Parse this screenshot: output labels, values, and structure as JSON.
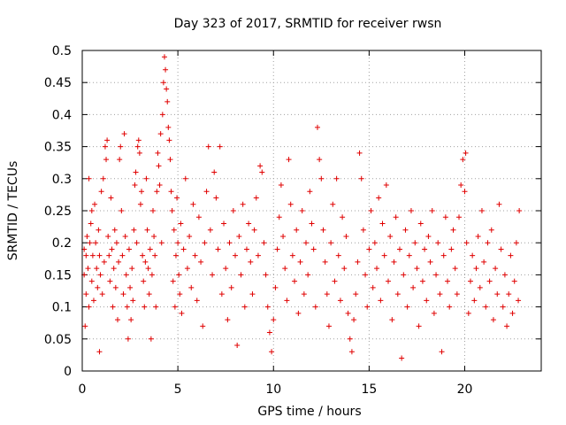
{
  "chart_data": {
    "type": "scatter",
    "title": "Day 323 of 2017, SRMTID for receiver rwsn",
    "xlabel": "GPS time / hours",
    "ylabel": "SRMTID / TECUs",
    "xlim": [
      0,
      24
    ],
    "ylim": [
      0,
      0.5
    ],
    "xticks": [
      0,
      5,
      10,
      15,
      20
    ],
    "xtick_labels": [
      "0",
      "5",
      "10",
      "15",
      "20"
    ],
    "yticks": [
      0,
      0.05,
      0.1,
      0.15,
      0.2,
      0.25,
      0.3,
      0.35,
      0.4,
      0.45,
      0.5
    ],
    "ytick_labels": [
      "0",
      "0.05",
      "0.1",
      "0.15",
      "0.2",
      "0.25",
      "0.3",
      "0.35",
      "0.4",
      "0.45",
      "0.5"
    ],
    "grid": true,
    "marker": "+",
    "color": "#e00000",
    "series": [
      {
        "name": "SRMTID",
        "points": [
          [
            0.1,
            0.15
          ],
          [
            0.1,
            0.19
          ],
          [
            0.15,
            0.07
          ],
          [
            0.2,
            0.18
          ],
          [
            0.2,
            0.12
          ],
          [
            0.25,
            0.21
          ],
          [
            0.3,
            0.16
          ],
          [
            0.35,
            0.1
          ],
          [
            0.35,
            0.3
          ],
          [
            0.4,
            0.2
          ],
          [
            0.45,
            0.23
          ],
          [
            0.5,
            0.14
          ],
          [
            0.5,
            0.25
          ],
          [
            0.55,
            0.18
          ],
          [
            0.6,
            0.11
          ],
          [
            0.65,
            0.26
          ],
          [
            0.7,
            0.2
          ],
          [
            0.75,
            0.16
          ],
          [
            0.8,
            0.13
          ],
          [
            0.85,
            0.22
          ],
          [
            0.9,
            0.18
          ],
          [
            0.9,
            0.03
          ],
          [
            0.95,
            0.15
          ],
          [
            1.0,
            0.28
          ],
          [
            1.05,
            0.12
          ],
          [
            1.1,
            0.3
          ],
          [
            1.15,
            0.17
          ],
          [
            1.2,
            0.35
          ],
          [
            1.25,
            0.33
          ],
          [
            1.3,
            0.36
          ],
          [
            1.35,
            0.21
          ],
          [
            1.4,
            0.18
          ],
          [
            1.45,
            0.14
          ],
          [
            1.5,
            0.27
          ],
          [
            1.55,
            0.19
          ],
          [
            1.6,
            0.1
          ],
          [
            1.65,
            0.16
          ],
          [
            1.7,
            0.22
          ],
          [
            1.75,
            0.13
          ],
          [
            1.8,
            0.2
          ],
          [
            1.85,
            0.08
          ],
          [
            1.9,
            0.17
          ],
          [
            1.95,
            0.33
          ],
          [
            2.0,
            0.35
          ],
          [
            2.05,
            0.25
          ],
          [
            2.1,
            0.18
          ],
          [
            2.15,
            0.12
          ],
          [
            2.2,
            0.37
          ],
          [
            2.25,
            0.21
          ],
          [
            2.3,
            0.15
          ],
          [
            2.35,
            0.1
          ],
          [
            2.4,
            0.05
          ],
          [
            2.45,
            0.19
          ],
          [
            2.5,
            0.13
          ],
          [
            2.55,
            0.08
          ],
          [
            2.6,
            0.16
          ],
          [
            2.65,
            0.11
          ],
          [
            2.7,
            0.22
          ],
          [
            2.75,
            0.29
          ],
          [
            2.8,
            0.31
          ],
          [
            2.85,
            0.2
          ],
          [
            2.9,
            0.35
          ],
          [
            2.95,
            0.36
          ],
          [
            3.0,
            0.34
          ],
          [
            3.05,
            0.26
          ],
          [
            3.1,
            0.28
          ],
          [
            3.15,
            0.18
          ],
          [
            3.2,
            0.14
          ],
          [
            3.25,
            0.1
          ],
          [
            3.3,
            0.17
          ],
          [
            3.35,
            0.3
          ],
          [
            3.4,
            0.22
          ],
          [
            3.45,
            0.16
          ],
          [
            3.5,
            0.12
          ],
          [
            3.55,
            0.19
          ],
          [
            3.6,
            0.05
          ],
          [
            3.65,
            0.15
          ],
          [
            3.7,
            0.25
          ],
          [
            3.75,
            0.21
          ],
          [
            3.8,
            0.18
          ],
          [
            3.85,
            0.1
          ],
          [
            3.9,
            0.28
          ],
          [
            3.95,
            0.34
          ],
          [
            4.0,
            0.32
          ],
          [
            4.05,
            0.29
          ],
          [
            4.1,
            0.37
          ],
          [
            4.15,
            0.2
          ],
          [
            4.2,
            0.4
          ],
          [
            4.25,
            0.45
          ],
          [
            4.3,
            0.49
          ],
          [
            4.35,
            0.47
          ],
          [
            4.4,
            0.44
          ],
          [
            4.45,
            0.42
          ],
          [
            4.5,
            0.38
          ],
          [
            4.55,
            0.36
          ],
          [
            4.6,
            0.33
          ],
          [
            4.65,
            0.28
          ],
          [
            4.7,
            0.25
          ],
          [
            4.75,
            0.14
          ],
          [
            4.8,
            0.22
          ],
          [
            4.85,
            0.1
          ],
          [
            4.9,
            0.18
          ],
          [
            4.95,
            0.27
          ],
          [
            5.0,
            0.2
          ],
          [
            5.05,
            0.15
          ],
          [
            5.1,
            0.12
          ],
          [
            5.15,
            0.23
          ],
          [
            5.2,
            0.09
          ],
          [
            5.3,
            0.19
          ],
          [
            5.4,
            0.3
          ],
          [
            5.5,
            0.16
          ],
          [
            5.6,
            0.21
          ],
          [
            5.7,
            0.13
          ],
          [
            5.8,
            0.26
          ],
          [
            5.9,
            0.18
          ],
          [
            6.0,
            0.11
          ],
          [
            6.1,
            0.24
          ],
          [
            6.2,
            0.17
          ],
          [
            6.3,
            0.07
          ],
          [
            6.4,
            0.2
          ],
          [
            6.5,
            0.28
          ],
          [
            6.6,
            0.35
          ],
          [
            6.7,
            0.22
          ],
          [
            6.8,
            0.15
          ],
          [
            6.9,
            0.31
          ],
          [
            7.0,
            0.27
          ],
          [
            7.1,
            0.19
          ],
          [
            7.2,
            0.35
          ],
          [
            7.3,
            0.12
          ],
          [
            7.4,
            0.23
          ],
          [
            7.5,
            0.16
          ],
          [
            7.6,
            0.08
          ],
          [
            7.7,
            0.2
          ],
          [
            7.8,
            0.13
          ],
          [
            7.9,
            0.25
          ],
          [
            8.0,
            0.18
          ],
          [
            8.1,
            0.04
          ],
          [
            8.2,
            0.21
          ],
          [
            8.3,
            0.15
          ],
          [
            8.4,
            0.26
          ],
          [
            8.5,
            0.1
          ],
          [
            8.6,
            0.19
          ],
          [
            8.7,
            0.23
          ],
          [
            8.8,
            0.17
          ],
          [
            8.9,
            0.12
          ],
          [
            9.0,
            0.22
          ],
          [
            9.1,
            0.27
          ],
          [
            9.2,
            0.18
          ],
          [
            9.3,
            0.32
          ],
          [
            9.4,
            0.31
          ],
          [
            9.5,
            0.2
          ],
          [
            9.6,
            0.15
          ],
          [
            9.7,
            0.1
          ],
          [
            9.8,
            0.06
          ],
          [
            9.9,
            0.03
          ],
          [
            10.0,
            0.08
          ],
          [
            10.1,
            0.13
          ],
          [
            10.2,
            0.19
          ],
          [
            10.3,
            0.24
          ],
          [
            10.4,
            0.29
          ],
          [
            10.5,
            0.21
          ],
          [
            10.6,
            0.16
          ],
          [
            10.7,
            0.11
          ],
          [
            10.8,
            0.33
          ],
          [
            10.9,
            0.26
          ],
          [
            11.0,
            0.18
          ],
          [
            11.1,
            0.14
          ],
          [
            11.2,
            0.22
          ],
          [
            11.3,
            0.09
          ],
          [
            11.4,
            0.17
          ],
          [
            11.5,
            0.25
          ],
          [
            11.6,
            0.12
          ],
          [
            11.7,
            0.2
          ],
          [
            11.8,
            0.15
          ],
          [
            11.9,
            0.28
          ],
          [
            12.0,
            0.23
          ],
          [
            12.1,
            0.19
          ],
          [
            12.2,
            0.1
          ],
          [
            12.3,
            0.38
          ],
          [
            12.4,
            0.33
          ],
          [
            12.5,
            0.3
          ],
          [
            12.6,
            0.22
          ],
          [
            12.7,
            0.17
          ],
          [
            12.8,
            0.12
          ],
          [
            12.9,
            0.07
          ],
          [
            13.0,
            0.2
          ],
          [
            13.1,
            0.26
          ],
          [
            13.2,
            0.14
          ],
          [
            13.3,
            0.3
          ],
          [
            13.4,
            0.18
          ],
          [
            13.5,
            0.11
          ],
          [
            13.6,
            0.24
          ],
          [
            13.7,
            0.16
          ],
          [
            13.8,
            0.21
          ],
          [
            13.9,
            0.09
          ],
          [
            14.0,
            0.05
          ],
          [
            14.1,
            0.03
          ],
          [
            14.2,
            0.08
          ],
          [
            14.3,
            0.12
          ],
          [
            14.4,
            0.17
          ],
          [
            14.5,
            0.34
          ],
          [
            14.6,
            0.3
          ],
          [
            14.7,
            0.22
          ],
          [
            14.8,
            0.15
          ],
          [
            14.9,
            0.1
          ],
          [
            15.0,
            0.19
          ],
          [
            15.1,
            0.25
          ],
          [
            15.2,
            0.13
          ],
          [
            15.3,
            0.2
          ],
          [
            15.4,
            0.16
          ],
          [
            15.5,
            0.27
          ],
          [
            15.6,
            0.11
          ],
          [
            15.7,
            0.23
          ],
          [
            15.8,
            0.18
          ],
          [
            15.9,
            0.29
          ],
          [
            16.0,
            0.14
          ],
          [
            16.1,
            0.21
          ],
          [
            16.2,
            0.08
          ],
          [
            16.3,
            0.17
          ],
          [
            16.4,
            0.24
          ],
          [
            16.5,
            0.12
          ],
          [
            16.6,
            0.19
          ],
          [
            16.7,
            0.02
          ],
          [
            16.8,
            0.15
          ],
          [
            16.9,
            0.22
          ],
          [
            17.0,
            0.1
          ],
          [
            17.1,
            0.18
          ],
          [
            17.2,
            0.25
          ],
          [
            17.3,
            0.13
          ],
          [
            17.4,
            0.2
          ],
          [
            17.5,
            0.16
          ],
          [
            17.6,
            0.07
          ],
          [
            17.7,
            0.23
          ],
          [
            17.8,
            0.14
          ],
          [
            17.9,
            0.19
          ],
          [
            18.0,
            0.11
          ],
          [
            18.1,
            0.21
          ],
          [
            18.2,
            0.17
          ],
          [
            18.3,
            0.25
          ],
          [
            18.4,
            0.09
          ],
          [
            18.5,
            0.15
          ],
          [
            18.6,
            0.2
          ],
          [
            18.7,
            0.12
          ],
          [
            18.8,
            0.03
          ],
          [
            18.9,
            0.18
          ],
          [
            19.0,
            0.24
          ],
          [
            19.1,
            0.14
          ],
          [
            19.2,
            0.1
          ],
          [
            19.3,
            0.19
          ],
          [
            19.4,
            0.22
          ],
          [
            19.5,
            0.16
          ],
          [
            19.6,
            0.12
          ],
          [
            19.7,
            0.24
          ],
          [
            19.8,
            0.29
          ],
          [
            19.9,
            0.33
          ],
          [
            20.0,
            0.28
          ],
          [
            20.05,
            0.34
          ],
          [
            20.1,
            0.2
          ],
          [
            20.2,
            0.09
          ],
          [
            20.3,
            0.14
          ],
          [
            20.4,
            0.18
          ],
          [
            20.5,
            0.11
          ],
          [
            20.6,
            0.16
          ],
          [
            20.7,
            0.21
          ],
          [
            20.8,
            0.13
          ],
          [
            20.9,
            0.25
          ],
          [
            21.0,
            0.17
          ],
          [
            21.1,
            0.1
          ],
          [
            21.2,
            0.2
          ],
          [
            21.3,
            0.14
          ],
          [
            21.4,
            0.22
          ],
          [
            21.5,
            0.08
          ],
          [
            21.6,
            0.16
          ],
          [
            21.7,
            0.12
          ],
          [
            21.8,
            0.26
          ],
          [
            21.9,
            0.19
          ],
          [
            22.0,
            0.1
          ],
          [
            22.1,
            0.15
          ],
          [
            22.2,
            0.07
          ],
          [
            22.3,
            0.12
          ],
          [
            22.4,
            0.18
          ],
          [
            22.5,
            0.09
          ],
          [
            22.6,
            0.14
          ],
          [
            22.7,
            0.2
          ],
          [
            22.8,
            0.11
          ],
          [
            22.85,
            0.25
          ]
        ]
      }
    ]
  }
}
